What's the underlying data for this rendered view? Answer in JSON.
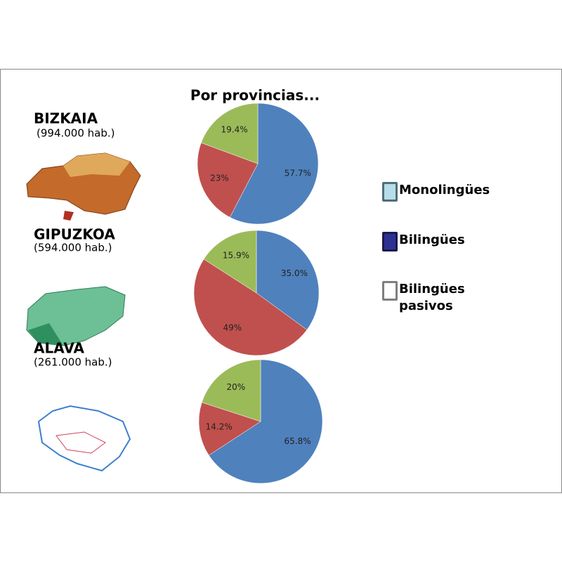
{
  "title": "Por provincias...",
  "legend": [
    {
      "name": "Monolingües",
      "color": "#b7dde8",
      "border": "#4f6f7a"
    },
    {
      "name": "Bilingües",
      "color": "#2e3192",
      "border": "#1a1a4a"
    },
    {
      "name": "Bilingües pasivos",
      "color": "#ffffff",
      "border": "#7f7f7f"
    }
  ],
  "chart_data": [
    {
      "type": "pie",
      "title": "BIZKAIA",
      "subtitle": "(994.000 hab.)",
      "values": [
        57.7,
        23,
        19.4
      ],
      "value_labels": [
        "57.7%",
        "23%",
        "19.4%"
      ],
      "colors": [
        "#4f81bd",
        "#c0504d",
        "#9bbb59"
      ]
    },
    {
      "type": "pie",
      "title": "GIPUZKOA",
      "subtitle": "(594.000 hab.)",
      "values": [
        35.0,
        49,
        15.9
      ],
      "value_labels": [
        "35.0%",
        "49%",
        "15.9%"
      ],
      "colors": [
        "#4f81bd",
        "#c0504d",
        "#9bbb59"
      ]
    },
    {
      "type": "pie",
      "title": "ALAVA",
      "subtitle": "(261.000 hab.)",
      "values": [
        65.8,
        14.2,
        20
      ],
      "value_labels": [
        "65.8%",
        "14.2%",
        "20%"
      ],
      "colors": [
        "#4f81bd",
        "#c0504d",
        "#9bbb59"
      ]
    }
  ]
}
